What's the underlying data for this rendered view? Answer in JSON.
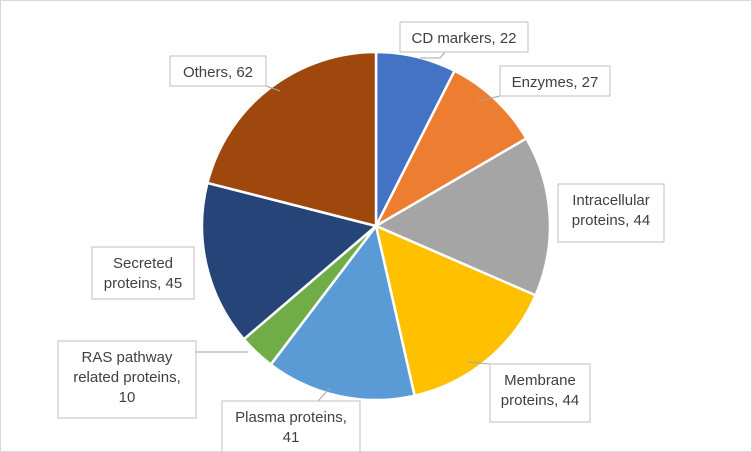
{
  "chart_data": {
    "type": "pie",
    "title": "",
    "categories": [
      "CD markers",
      "Enzymes",
      "Intracellular proteins",
      "Membrane proteins",
      "Plasma proteins",
      "RAS pathway related proteins",
      "Secreted proteins",
      "Others"
    ],
    "values": [
      22,
      27,
      44,
      44,
      41,
      10,
      45,
      62
    ],
    "colors": [
      "#4472c4",
      "#ed7d31",
      "#a5a5a5",
      "#ffc000",
      "#5b9bd5",
      "#70ad47",
      "#264478",
      "#9e480e"
    ],
    "labels": [
      [
        "CD markers, 22"
      ],
      [
        "Enzymes, 27"
      ],
      [
        "Intracellular",
        "proteins, 44"
      ],
      [
        "Membrane",
        "proteins, 44"
      ],
      [
        "Plasma proteins,",
        "41"
      ],
      [
        "RAS pathway",
        "related proteins,",
        "10"
      ],
      [
        "Secreted",
        "proteins, 45"
      ],
      [
        "Others, 62"
      ]
    ],
    "legend": "none"
  }
}
